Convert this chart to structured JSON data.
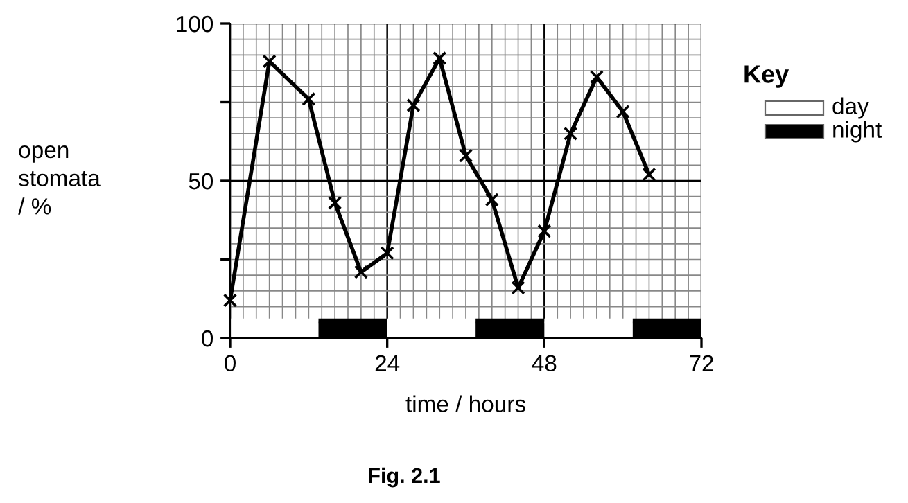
{
  "chart_data": {
    "type": "line",
    "ylabel": "open\nstomata\n/ %",
    "xlabel": "time / hours",
    "grid": true,
    "marker": "cross",
    "line_style": "solid",
    "x": [
      0,
      6,
      12,
      16,
      20,
      24,
      28,
      32,
      36,
      40,
      44,
      48,
      52,
      56,
      60,
      64
    ],
    "series": [
      {
        "color": "#000000",
        "values": [
          12,
          88,
          76,
          43,
          21,
          27,
          74,
          89,
          58,
          44,
          16,
          34,
          65,
          83,
          72,
          52
        ]
      }
    ],
    "xlim": [
      0,
      72
    ],
    "ylim": [
      0,
      100
    ],
    "xticks": [
      0,
      24,
      48,
      72
    ],
    "yticks": [
      0,
      {
        "value": 25,
        "label": null
      },
      50,
      {
        "value": 75,
        "label": null
      },
      100
    ],
    "bands": [
      {
        "axis": "x",
        "from": 0,
        "to": 13.5,
        "color": "#ffffff"
      },
      {
        "axis": "x",
        "from": 13.5,
        "to": 24,
        "color": "#000000"
      },
      {
        "axis": "x",
        "from": 24,
        "to": 37.5,
        "color": "#ffffff"
      },
      {
        "axis": "x",
        "from": 37.5,
        "to": 48,
        "color": "#000000"
      },
      {
        "axis": "x",
        "from": 48,
        "to": 61.5,
        "color": "#ffffff"
      },
      {
        "axis": "x",
        "from": 61.5,
        "to": 72,
        "color": "#000000"
      }
    ],
    "annotations": [
      "Key",
      "day",
      "night",
      "Fig. 2.1"
    ]
  }
}
